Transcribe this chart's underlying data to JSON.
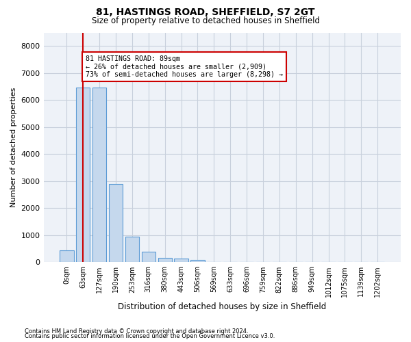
{
  "title1": "81, HASTINGS ROAD, SHEFFIELD, S7 2GT",
  "title2": "Size of property relative to detached houses in Sheffield",
  "xlabel": "Distribution of detached houses by size in Sheffield",
  "ylabel": "Number of detached properties",
  "footnote1": "Contains HM Land Registry data © Crown copyright and database right 2024.",
  "footnote2": "Contains public sector information licensed under the Open Government Licence v3.0.",
  "bar_color": "#c5d8ed",
  "bar_edgecolor": "#5b9bd5",
  "bin_labels": [
    "0sqm",
    "63sqm",
    "127sqm",
    "190sqm",
    "253sqm",
    "316sqm",
    "380sqm",
    "443sqm",
    "506sqm",
    "569sqm",
    "633sqm",
    "696sqm",
    "759sqm",
    "822sqm",
    "886sqm",
    "949sqm",
    "1012sqm",
    "1075sqm",
    "1139sqm",
    "1202sqm"
  ],
  "bar_values": [
    450,
    6450,
    6450,
    2900,
    950,
    380,
    165,
    125,
    80,
    0,
    0,
    0,
    0,
    0,
    0,
    0,
    0,
    0,
    0,
    0
  ],
  "property_bin_index": 1,
  "annotation_text": "81 HASTINGS ROAD: 89sqm\n← 26% of detached houses are smaller (2,909)\n73% of semi-detached houses are larger (8,298) →",
  "annotation_box_color": "#ffffff",
  "annotation_box_edgecolor": "#cc0000",
  "ylim": [
    0,
    8500
  ],
  "yticks": [
    0,
    1000,
    2000,
    3000,
    4000,
    5000,
    6000,
    7000,
    8000
  ],
  "grid_color": "#c8d0dc",
  "background_color": "#eef2f8"
}
